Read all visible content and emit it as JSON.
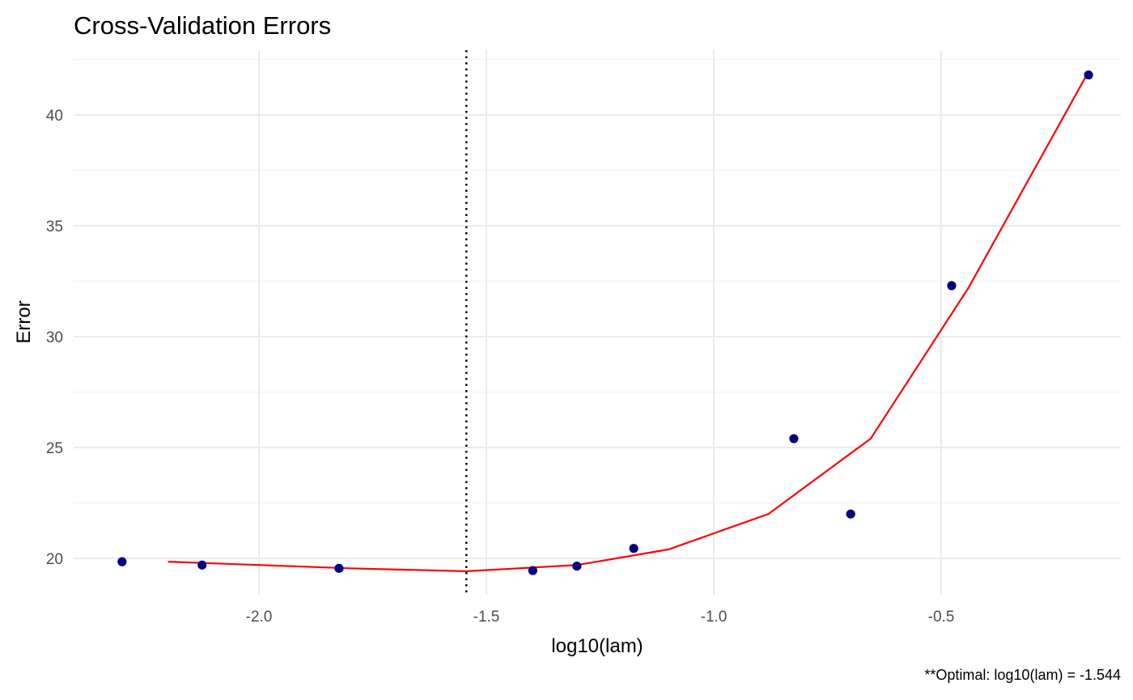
{
  "chart_data": {
    "type": "scatter",
    "title": "Cross-Validation Errors",
    "xlabel": "log10(lam)",
    "ylabel": "Error",
    "caption": "**Optimal: log10(lam) = -1.544",
    "xlim": [
      -2.3,
      -0.18
    ],
    "ylim": [
      18.7,
      42.8
    ],
    "x_ticks": [
      -2.0,
      -1.5,
      -1.0,
      -0.5
    ],
    "x_tick_labels": [
      "-2.0",
      "-1.5",
      "-1.0",
      "-0.5"
    ],
    "y_ticks": [
      20,
      25,
      30,
      35,
      40
    ],
    "y_tick_labels": [
      "20",
      "25",
      "30",
      "35",
      "40"
    ],
    "grid": true,
    "legend": "none",
    "series": [
      {
        "type": "scatter",
        "color": "#000080",
        "x": [
          -2.301,
          -2.125,
          -1.824,
          -1.398,
          -1.301,
          -1.176,
          -0.824,
          -0.699,
          -0.477,
          -0.176
        ],
        "y": [
          19.85,
          19.7,
          19.55,
          19.45,
          19.65,
          20.45,
          25.4,
          22.0,
          32.3,
          41.8
        ]
      },
      {
        "type": "line",
        "color": "#ff0000",
        "x": [
          -2.2,
          -1.8,
          -1.544,
          -1.3,
          -1.1,
          -0.88,
          -0.655,
          -0.44,
          -0.18
        ],
        "y": [
          19.85,
          19.55,
          19.42,
          19.7,
          20.4,
          22.0,
          25.4,
          32.2,
          41.8
        ]
      }
    ],
    "vline": {
      "x": -1.544,
      "style": "dotted",
      "color": "#000000"
    }
  }
}
